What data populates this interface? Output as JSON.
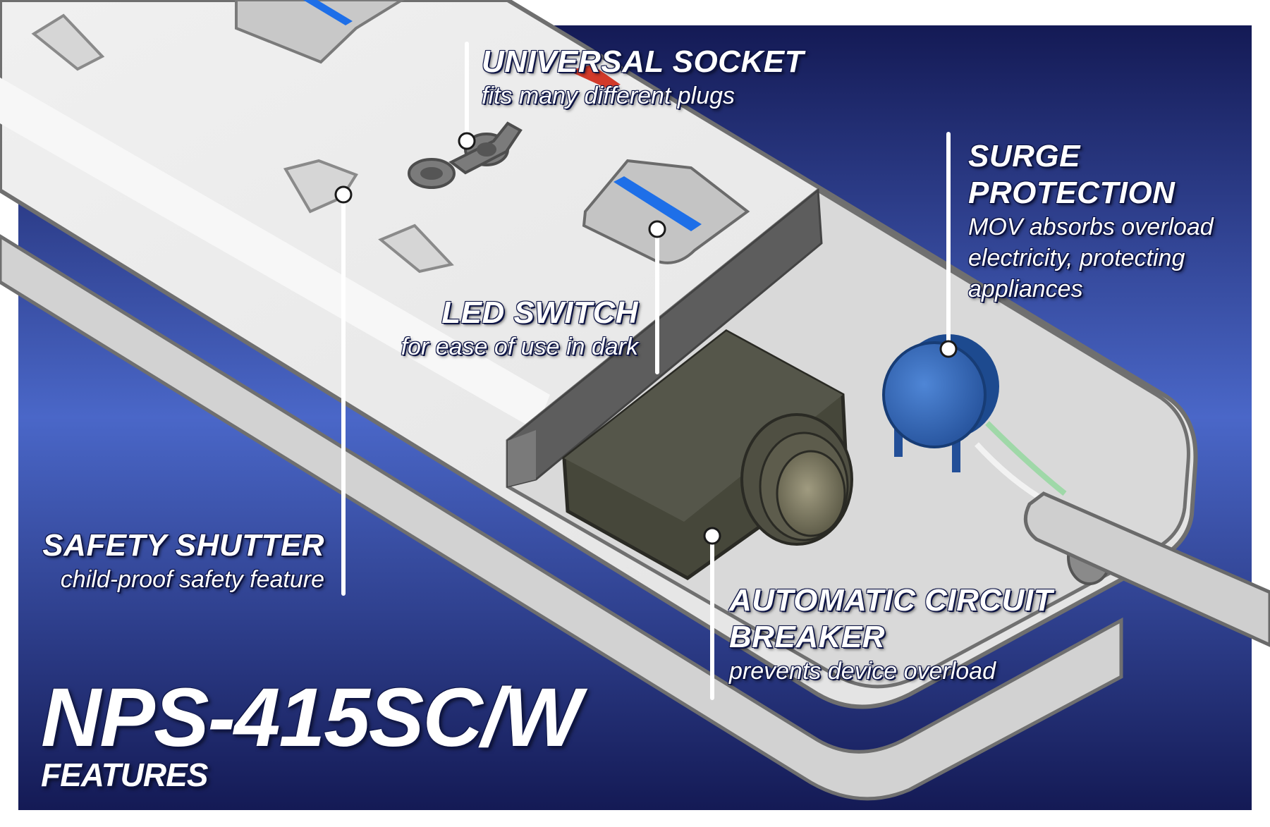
{
  "colors": {
    "background_top": "#141a55",
    "background_mid": "#4a67c8",
    "background_bottom": "#141a55",
    "strip_body": "#e8e8e8",
    "strip_outline": "#6f6f6f",
    "switch_led": "#1e6fe8",
    "socket_led_red": "#d23a2a",
    "breaker": "#46473a",
    "mov": "#2f66b6",
    "wire_green": "#9fd8a8",
    "callout_line": "#ffffff"
  },
  "callouts": [
    {
      "id": "universal-socket",
      "title": "UNIVERSAL SOCKET",
      "description": "fits many different plugs"
    },
    {
      "id": "surge-protection",
      "title": "SURGE\nPROTECTION",
      "description": "MOV absorbs overload electricity, protecting appliances"
    },
    {
      "id": "led-switch",
      "title": "LED SWITCH",
      "description": "for ease of use in dark"
    },
    {
      "id": "safety-shutter",
      "title": "SAFETY SHUTTER",
      "description": "child-proof safety feature"
    },
    {
      "id": "circuit-breaker",
      "title": "AUTOMATIC CIRCUIT\nBREAKER",
      "description": "prevents device overload"
    }
  ],
  "product": {
    "model": "NPS-415SC/W",
    "subtitle": "FEATURES"
  },
  "icons": [
    "power-strip-illustration",
    "universal-socket-icon",
    "led-switch-icon",
    "safety-shutter-icon",
    "circuit-breaker-icon",
    "mov-varistor-icon",
    "power-cord-icon"
  ]
}
